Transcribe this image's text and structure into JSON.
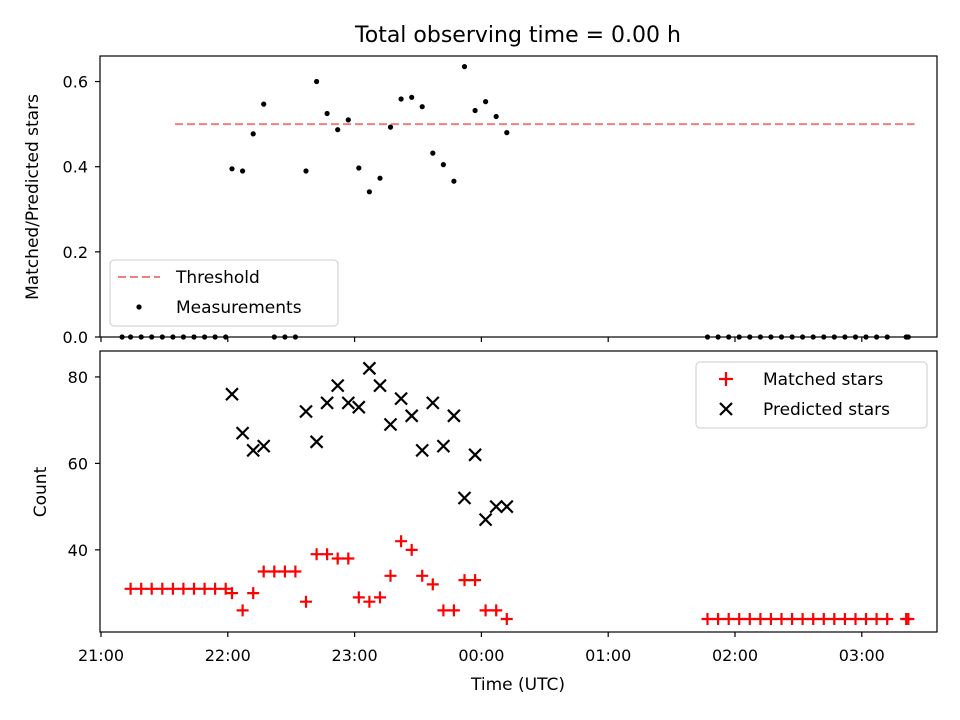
{
  "chart_data": [
    {
      "type": "scatter",
      "title": "Total observing time = 0.00 h",
      "xlabel": "",
      "ylabel": "Matched/Predicted stars",
      "ylim": [
        0,
        0.66
      ],
      "yticks": [
        "0.0",
        "0.2",
        "0.4",
        "0.6"
      ],
      "yticks_values": [
        0,
        0.2,
        0.4,
        0.6
      ],
      "legend_position": "lower-left",
      "threshold": {
        "name": "Threshold",
        "value": 0.5,
        "x_range": [
          "21:35",
          "03:25"
        ],
        "color": "#f08080"
      },
      "series": [
        {
          "name": "Measurements",
          "color": "#000000",
          "points": [
            [
              "21:10",
              0
            ],
            [
              "21:14",
              0
            ],
            [
              "21:19",
              0
            ],
            [
              "21:24",
              0
            ],
            [
              "21:29",
              0
            ],
            [
              "21:34",
              0
            ],
            [
              "21:39",
              0
            ],
            [
              "21:44",
              0
            ],
            [
              "21:49",
              0
            ],
            [
              "21:54",
              0
            ],
            [
              "21:59",
              0
            ],
            [
              "22:02",
              0.395
            ],
            [
              "22:07",
              0.39
            ],
            [
              "22:12",
              0.477
            ],
            [
              "22:17",
              0.547
            ],
            [
              "22:22",
              0
            ],
            [
              "22:27",
              0
            ],
            [
              "22:32",
              0
            ],
            [
              "22:37",
              0.39
            ],
            [
              "22:42",
              0.6
            ],
            [
              "22:47",
              0.525
            ],
            [
              "22:52",
              0.487
            ],
            [
              "22:57",
              0.51
            ],
            [
              "23:02",
              0.397
            ],
            [
              "23:07",
              0.341
            ],
            [
              "23:12",
              0.373
            ],
            [
              "23:17",
              0.493
            ],
            [
              "23:22",
              0.559
            ],
            [
              "23:27",
              0.563
            ],
            [
              "23:32",
              0.541
            ],
            [
              "23:37",
              0.432
            ],
            [
              "23:42",
              0.405
            ],
            [
              "23:47",
              0.366
            ],
            [
              "23:52",
              0.635
            ],
            [
              "23:57",
              0.532
            ],
            [
              "00:02",
              0.553
            ],
            [
              "00:07",
              0.518
            ],
            [
              "00:12",
              0.48
            ],
            [
              "01:47",
              0
            ],
            [
              "01:52",
              0
            ],
            [
              "01:57",
              0
            ],
            [
              "02:02",
              0
            ],
            [
              "02:07",
              0
            ],
            [
              "02:12",
              0
            ],
            [
              "02:17",
              0
            ],
            [
              "02:22",
              0
            ],
            [
              "02:27",
              0
            ],
            [
              "02:32",
              0
            ],
            [
              "02:37",
              0
            ],
            [
              "02:42",
              0
            ],
            [
              "02:47",
              0
            ],
            [
              "02:52",
              0
            ],
            [
              "02:57",
              0
            ],
            [
              "03:02",
              0
            ],
            [
              "03:07",
              0
            ],
            [
              "03:12",
              0
            ],
            [
              "03:21",
              0
            ],
            [
              "03:22",
              0
            ]
          ]
        }
      ]
    },
    {
      "type": "scatter",
      "title": "",
      "xlabel": "Time (UTC)",
      "ylabel": "Count",
      "ylim": [
        21,
        86
      ],
      "yticks": [
        "40",
        "60",
        "80"
      ],
      "yticks_values": [
        40,
        60,
        80
      ],
      "xticks": [
        "21:00",
        "22:00",
        "23:00",
        "00:00",
        "01:00",
        "02:00",
        "03:00"
      ],
      "legend_position": "upper-right",
      "series": [
        {
          "name": "Matched stars",
          "color": "#ff0000",
          "marker": "plus",
          "points": [
            [
              "21:14",
              31
            ],
            [
              "21:19",
              31
            ],
            [
              "21:24",
              31
            ],
            [
              "21:29",
              31
            ],
            [
              "21:34",
              31
            ],
            [
              "21:39",
              31
            ],
            [
              "21:44",
              31
            ],
            [
              "21:49",
              31
            ],
            [
              "21:54",
              31
            ],
            [
              "21:59",
              31
            ],
            [
              "22:02",
              30
            ],
            [
              "22:07",
              26
            ],
            [
              "22:12",
              30
            ],
            [
              "22:17",
              35
            ],
            [
              "22:22",
              35
            ],
            [
              "22:27",
              35
            ],
            [
              "22:32",
              35
            ],
            [
              "22:37",
              28
            ],
            [
              "22:42",
              39
            ],
            [
              "22:47",
              39
            ],
            [
              "22:52",
              38
            ],
            [
              "22:57",
              38
            ],
            [
              "23:02",
              29
            ],
            [
              "23:07",
              28
            ],
            [
              "23:12",
              29
            ],
            [
              "23:17",
              34
            ],
            [
              "23:22",
              42
            ],
            [
              "23:27",
              40
            ],
            [
              "23:32",
              34
            ],
            [
              "23:37",
              32
            ],
            [
              "23:42",
              26
            ],
            [
              "23:47",
              26
            ],
            [
              "23:52",
              33
            ],
            [
              "23:57",
              33
            ],
            [
              "00:02",
              26
            ],
            [
              "00:07",
              26
            ],
            [
              "00:12",
              24
            ],
            [
              "01:47",
              24
            ],
            [
              "01:52",
              24
            ],
            [
              "01:57",
              24
            ],
            [
              "02:02",
              24
            ],
            [
              "02:07",
              24
            ],
            [
              "02:12",
              24
            ],
            [
              "02:17",
              24
            ],
            [
              "02:22",
              24
            ],
            [
              "02:27",
              24
            ],
            [
              "02:32",
              24
            ],
            [
              "02:37",
              24
            ],
            [
              "02:42",
              24
            ],
            [
              "02:47",
              24
            ],
            [
              "02:52",
              24
            ],
            [
              "02:57",
              24
            ],
            [
              "03:02",
              24
            ],
            [
              "03:07",
              24
            ],
            [
              "03:12",
              24
            ],
            [
              "03:21",
              24
            ],
            [
              "03:22",
              24
            ]
          ]
        },
        {
          "name": "Predicted stars",
          "color": "#000000",
          "marker": "x",
          "points": [
            [
              "22:02",
              76
            ],
            [
              "22:07",
              67
            ],
            [
              "22:12",
              63
            ],
            [
              "22:17",
              64
            ],
            [
              "22:37",
              72
            ],
            [
              "22:42",
              65
            ],
            [
              "22:47",
              74
            ],
            [
              "22:52",
              78
            ],
            [
              "22:57",
              74
            ],
            [
              "23:02",
              73
            ],
            [
              "23:07",
              82
            ],
            [
              "23:12",
              78
            ],
            [
              "23:17",
              69
            ],
            [
              "23:22",
              75
            ],
            [
              "23:27",
              71
            ],
            [
              "23:32",
              63
            ],
            [
              "23:37",
              74
            ],
            [
              "23:42",
              64
            ],
            [
              "23:47",
              71
            ],
            [
              "23:52",
              52
            ],
            [
              "23:57",
              62
            ],
            [
              "00:02",
              47
            ],
            [
              "00:07",
              50
            ],
            [
              "00:12",
              50
            ]
          ]
        }
      ]
    }
  ]
}
